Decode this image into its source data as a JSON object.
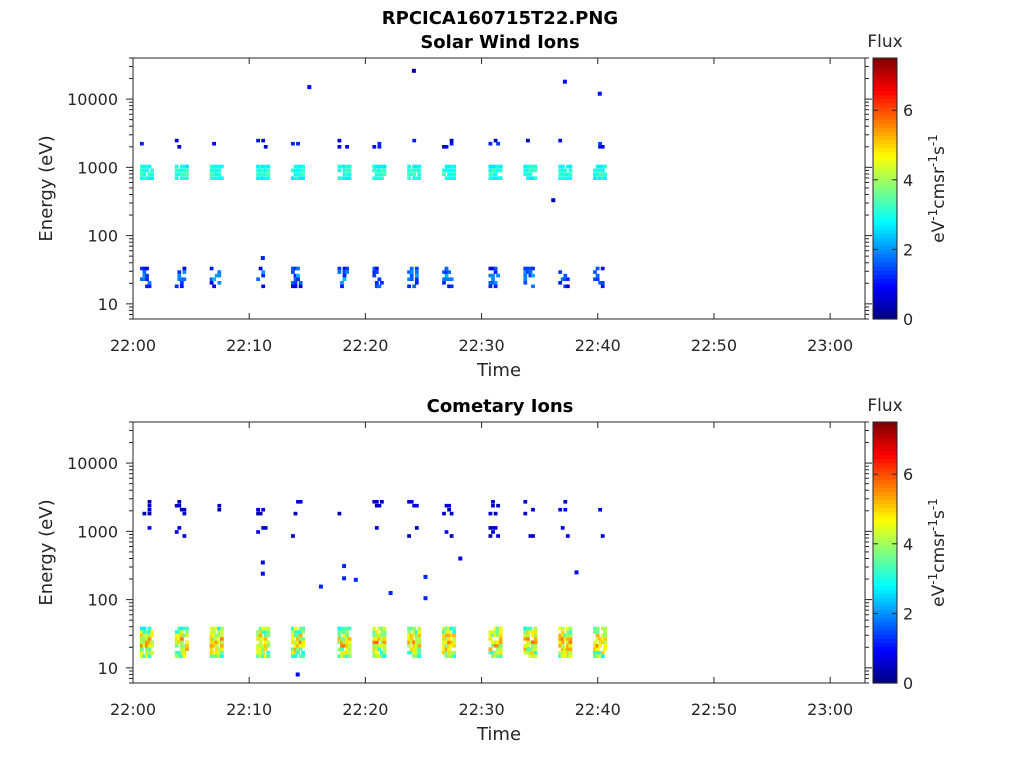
{
  "figure_title": "RPCICA160715T22.PNG",
  "chart_data": [
    {
      "type": "heatmap",
      "title": "Solar Wind Ions",
      "xlabel": "Time",
      "ylabel": "Energy (eV)",
      "y_scale": "log",
      "ylim": [
        6,
        40000
      ],
      "xlim": [
        "22:00",
        "23:03"
      ],
      "x_ticks": [
        "22:00",
        "22:10",
        "22:20",
        "22:30",
        "22:40",
        "22:50",
        "23:00"
      ],
      "y_ticks": [
        "10",
        "100",
        "1000",
        "10000"
      ],
      "colorbar": {
        "title": "Flux",
        "label": "eV-1cm-2sr-1s-1",
        "range": [
          0,
          7.5
        ],
        "ticks": [
          "0",
          "2",
          "4",
          "6"
        ],
        "colormap": "jet"
      },
      "x_data_extent": [
        "22:00",
        "22:41"
      ],
      "sweep_times": [
        "22:01",
        "22:04",
        "22:07",
        "22:11",
        "22:14",
        "22:18",
        "22:21",
        "22:24",
        "22:27",
        "22:31",
        "22:34",
        "22:37",
        "22:40"
      ],
      "bands": [
        {
          "name_hint": "main",
          "energy_range_eV": [
            650,
            1100
          ],
          "flux_range": [
            2.5,
            3.5
          ]
        },
        {
          "name_hint": "low",
          "energy_range_eV": [
            17,
            35
          ],
          "flux_range": [
            0.5,
            2.5
          ]
        },
        {
          "name_hint": "sparse-high",
          "energy_range_eV": [
            1900,
            2600
          ],
          "flux_range": [
            0.3,
            1.5
          ]
        }
      ],
      "isolated_points": [
        {
          "time": "22:15",
          "energy": 15000,
          "flux": 1.0
        },
        {
          "time": "22:24",
          "energy": 26000,
          "flux": 0.3
        },
        {
          "time": "22:37",
          "energy": 18000,
          "flux": 1.0
        },
        {
          "time": "22:40",
          "energy": 12000,
          "flux": 1.0
        },
        {
          "time": "22:36",
          "energy": 330,
          "flux": 0.3
        },
        {
          "time": "22:11",
          "energy": 47,
          "flux": 1.2
        }
      ]
    },
    {
      "type": "heatmap",
      "title": "Cometary Ions",
      "xlabel": "Time",
      "ylabel": "Energy (eV)",
      "y_scale": "log",
      "ylim": [
        6,
        40000
      ],
      "xlim": [
        "22:00",
        "23:03"
      ],
      "x_ticks": [
        "22:00",
        "22:10",
        "22:20",
        "22:30",
        "22:40",
        "22:50",
        "23:00"
      ],
      "y_ticks": [
        "10",
        "100",
        "1000",
        "10000"
      ],
      "colorbar": {
        "title": "Flux",
        "label": "eV-1cm-2sr-1s-1",
        "range": [
          0,
          7.5
        ],
        "ticks": [
          "0",
          "2",
          "4",
          "6"
        ],
        "colormap": "jet"
      },
      "x_data_extent": [
        "22:00",
        "22:41"
      ],
      "sweep_times": [
        "22:01",
        "22:04",
        "22:07",
        "22:11",
        "22:14",
        "22:18",
        "22:21",
        "22:24",
        "22:27",
        "22:31",
        "22:34",
        "22:37",
        "22:40"
      ],
      "bands": [
        {
          "name_hint": "main",
          "energy_range_eV": [
            14,
            40
          ],
          "flux_range": [
            2.5,
            6.0
          ]
        },
        {
          "name_hint": "sparse-mid",
          "energy_range_eV": [
            800,
            1200
          ],
          "flux_range": [
            0.2,
            1.0
          ]
        },
        {
          "name_hint": "sparse-high",
          "energy_range_eV": [
            1700,
            2900
          ],
          "flux_range": [
            0.2,
            0.8
          ]
        }
      ],
      "isolated_points": [
        {
          "time": "22:11",
          "energy": 350,
          "flux": 1.0
        },
        {
          "time": "22:11",
          "energy": 240,
          "flux": 1.0
        },
        {
          "time": "22:16",
          "energy": 155,
          "flux": 1.2
        },
        {
          "time": "22:18",
          "energy": 310,
          "flux": 1.2
        },
        {
          "time": "22:18",
          "energy": 205,
          "flux": 1.2
        },
        {
          "time": "22:19",
          "energy": 195,
          "flux": 1.2
        },
        {
          "time": "22:22",
          "energy": 125,
          "flux": 1.2
        },
        {
          "time": "22:25",
          "energy": 215,
          "flux": 1.2
        },
        {
          "time": "22:25",
          "energy": 105,
          "flux": 1.2
        },
        {
          "time": "22:28",
          "energy": 400,
          "flux": 0.8
        },
        {
          "time": "22:38",
          "energy": 250,
          "flux": 1.0
        },
        {
          "time": "22:14",
          "energy": 8,
          "flux": 0.8
        }
      ]
    }
  ]
}
